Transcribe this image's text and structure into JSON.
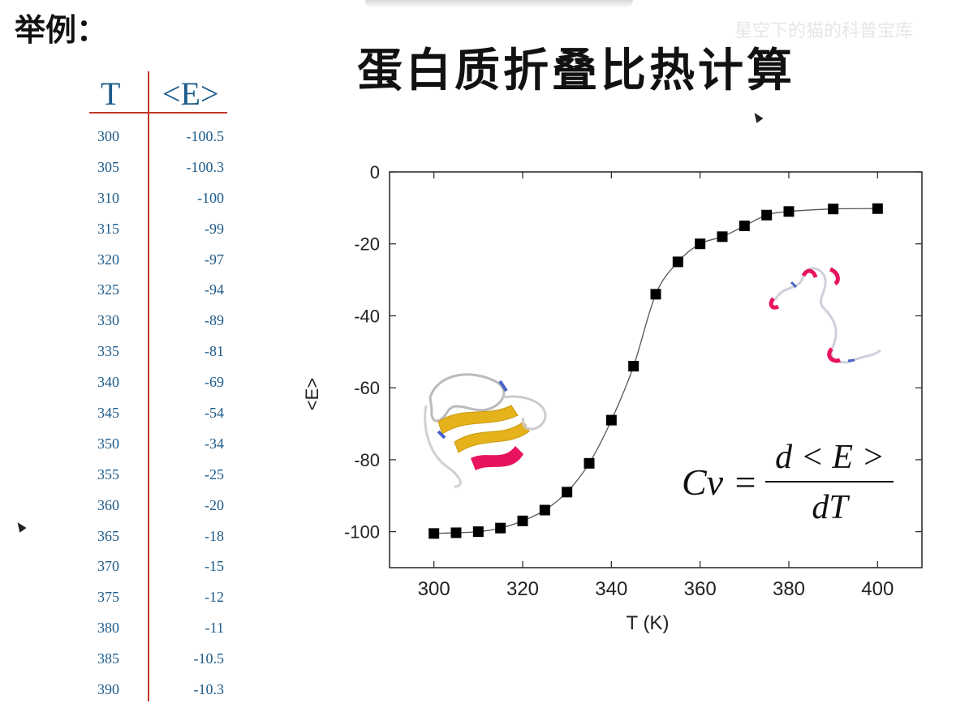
{
  "header_label": "举例：",
  "slide_title": "蛋白质折叠比热计算",
  "watermark": "星空下的猫的科普宝库",
  "table": {
    "col_t": "T",
    "col_e": "<E>",
    "rows": [
      {
        "t": "300",
        "e": "-100.5"
      },
      {
        "t": "305",
        "e": "-100.3"
      },
      {
        "t": "310",
        "e": "-100"
      },
      {
        "t": "315",
        "e": "-99"
      },
      {
        "t": "320",
        "e": "-97"
      },
      {
        "t": "325",
        "e": "-94"
      },
      {
        "t": "330",
        "e": "-89"
      },
      {
        "t": "335",
        "e": "-81"
      },
      {
        "t": "340",
        "e": "-69"
      },
      {
        "t": "345",
        "e": "-54"
      },
      {
        "t": "350",
        "e": "-34"
      },
      {
        "t": "355",
        "e": "-25"
      },
      {
        "t": "360",
        "e": "-20"
      },
      {
        "t": "365",
        "e": "-18"
      },
      {
        "t": "370",
        "e": "-15"
      },
      {
        "t": "375",
        "e": "-12"
      },
      {
        "t": "380",
        "e": "-11"
      },
      {
        "t": "385",
        "e": "-10.5"
      },
      {
        "t": "390",
        "e": "-10.3"
      }
    ]
  },
  "formula": {
    "lhs": "Cv =",
    "numerator": "d < E >",
    "denominator": "dT"
  },
  "chart_data": {
    "type": "line",
    "xlabel": "T (K)",
    "ylabel": "<E>",
    "xlim": [
      290,
      410
    ],
    "ylim": [
      -110,
      0
    ],
    "xticks": [
      300,
      320,
      340,
      360,
      380,
      400
    ],
    "yticks": [
      0,
      -20,
      -40,
      -60,
      -80,
      -100
    ],
    "grid": false,
    "marker": "square",
    "series": [
      {
        "x": [
          300,
          305,
          310,
          315,
          320,
          325,
          330,
          335,
          340,
          345,
          350,
          355,
          360,
          365,
          370,
          375,
          380,
          390,
          400
        ],
        "y": [
          -100.5,
          -100.3,
          -100,
          -99,
          -97,
          -94,
          -89,
          -81,
          -69,
          -54,
          -34,
          -25,
          -20,
          -18,
          -15,
          -12,
          -11,
          -10.3,
          -10.2
        ]
      }
    ],
    "colors": {
      "marker": "#000000",
      "line": "#555555",
      "text": "#222222"
    }
  }
}
